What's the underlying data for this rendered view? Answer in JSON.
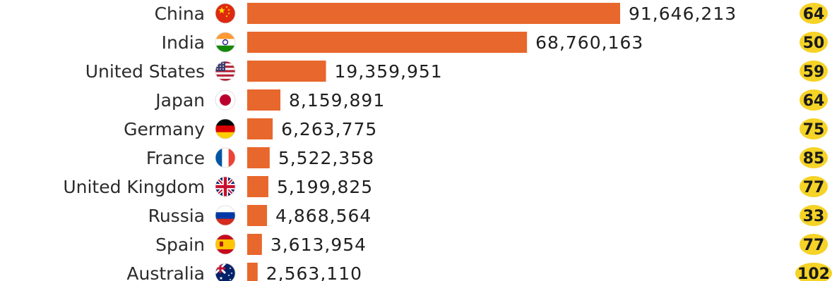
{
  "chart_data": {
    "type": "bar",
    "orientation": "horizontal",
    "colors": {
      "bar": "#e8672c",
      "badge": "#f5d327"
    },
    "categories": [
      "China",
      "India",
      "United States",
      "Japan",
      "Germany",
      "France",
      "United Kingdom",
      "Russia",
      "Spain",
      "Australia"
    ],
    "series": [
      {
        "values": [
          91646213,
          68760163,
          19359951,
          8159891,
          6263775,
          5522358,
          5199825,
          4868564,
          3613954,
          2563110
        ]
      },
      {
        "values": [
          64,
          50,
          59,
          64,
          75,
          85,
          77,
          33,
          77,
          102
        ]
      }
    ],
    "value_labels": [
      "91,646,213",
      "68,760,163",
      "19,359,951",
      "8,159,891",
      "6,263,775",
      "5,522,358",
      "5,199,825",
      "4,868,564",
      "3,613,954",
      "2,563,110"
    ],
    "badge_labels": [
      "64",
      "50",
      "59",
      "64",
      "75",
      "85",
      "77",
      "33",
      "77",
      "102"
    ],
    "flags": [
      "china-flag-icon",
      "india-flag-icon",
      "united-states-flag-icon",
      "japan-flag-icon",
      "germany-flag-icon",
      "france-flag-icon",
      "united-kingdom-flag-icon",
      "russia-flag-icon",
      "spain-flag-icon",
      "australia-flag-icon"
    ]
  }
}
